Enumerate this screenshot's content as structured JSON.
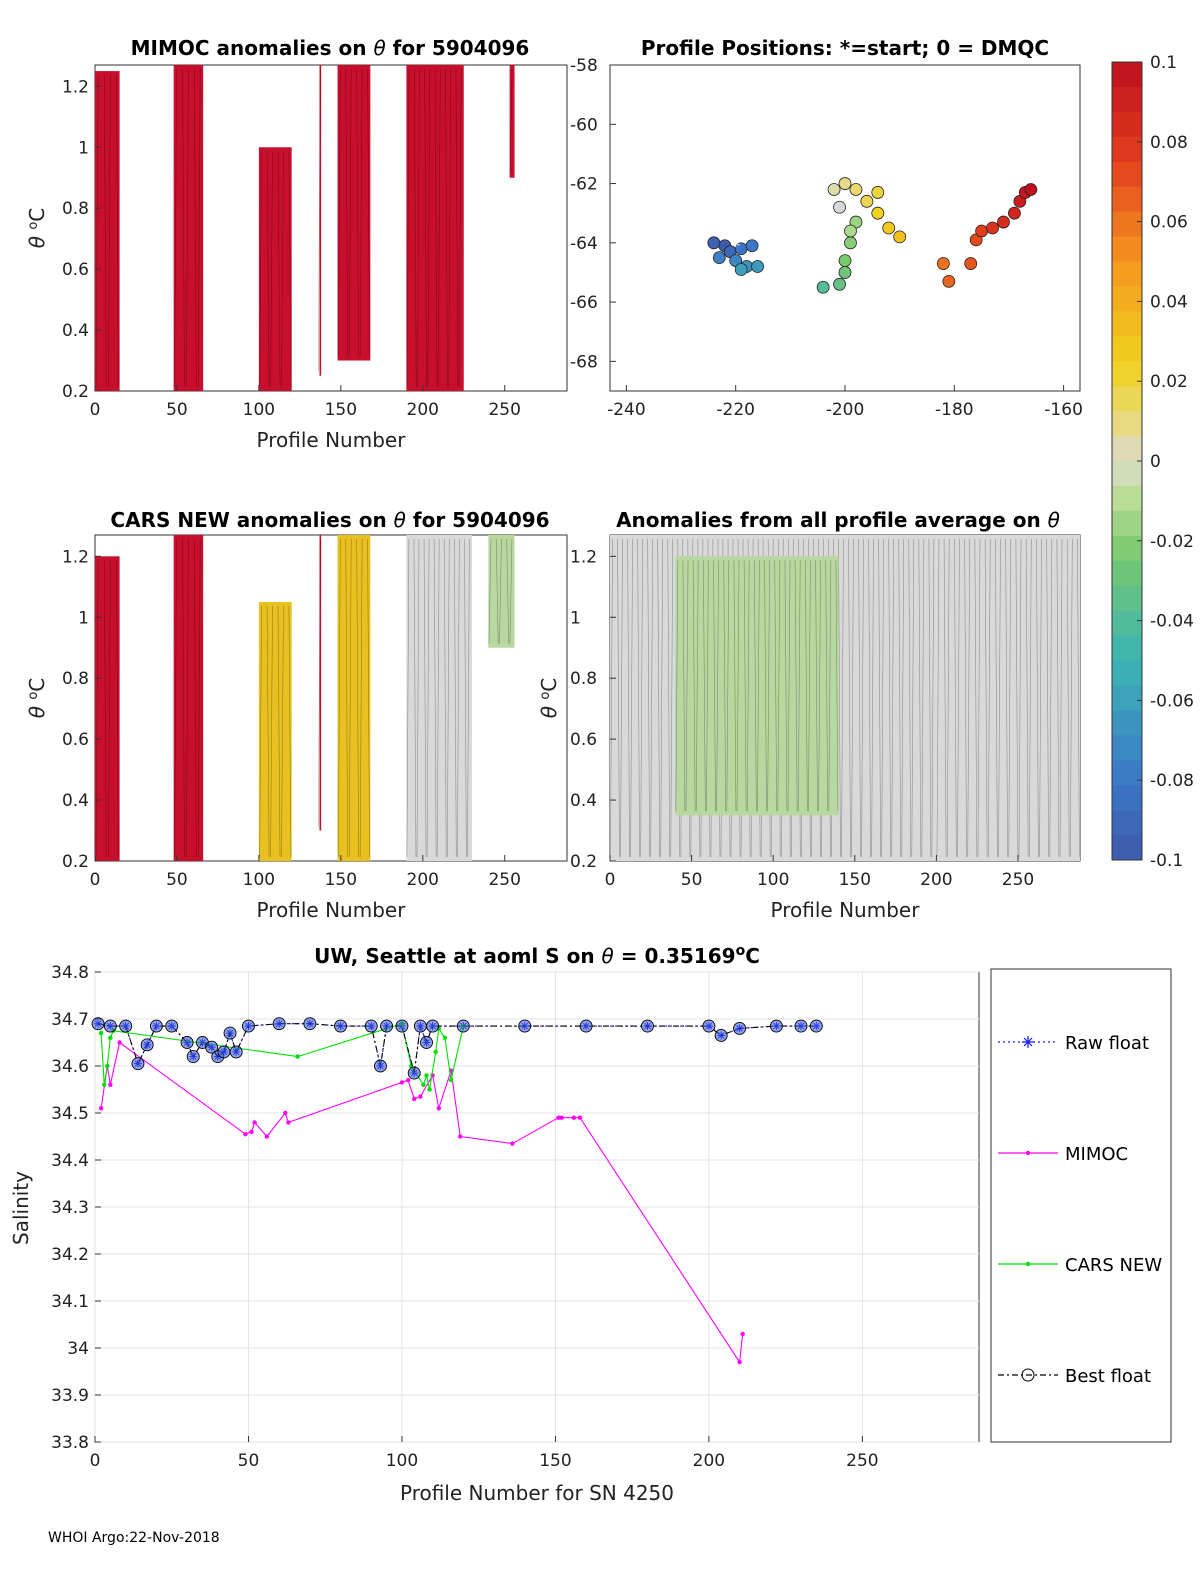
{
  "footer": "WHOI Argo:22-Nov-2018",
  "colors": {
    "raw": "#1a1aff",
    "mimoc": "#ff00ff",
    "cars": "#00e000",
    "best": "#000000",
    "anom_hot": "#c8102e",
    "anom_warm": "#e8c020",
    "anom_zero": "#d9d9d9",
    "anom_cool": "#b8d8a0"
  },
  "chart_data": [
    {
      "id": "p1",
      "type": "heatmap",
      "title_a": "MIMOC anomalies on ",
      "title_sym": "θ",
      "title_b": "  for 5904096",
      "xlabel": "Profile Number",
      "ylabel_sym": "θ",
      "ylabel_unit": "C",
      "xlim": [
        0,
        288
      ],
      "ylim": [
        0.2,
        1.27
      ],
      "xticks": [
        "0",
        "50",
        "100",
        "150",
        "200",
        "250"
      ],
      "xtick_vals": [
        0,
        50,
        100,
        150,
        200,
        250
      ],
      "yticks": [
        "0.2",
        "0.4",
        "0.6",
        "0.8",
        "1",
        "1.2"
      ],
      "ytick_vals": [
        0.2,
        0.4,
        0.6,
        0.8,
        1.0,
        1.2
      ],
      "bands": [
        {
          "x0": 0,
          "x1": 15,
          "y0": 0.2,
          "y1": 1.25,
          "level": "hot"
        },
        {
          "x0": 48,
          "x1": 66,
          "y0": 0.2,
          "y1": 1.27,
          "level": "hot"
        },
        {
          "x0": 100,
          "x1": 120,
          "y0": 0.2,
          "y1": 1.0,
          "level": "hot"
        },
        {
          "x0": 137,
          "x1": 138,
          "y0": 0.25,
          "y1": 1.27,
          "level": "hot"
        },
        {
          "x0": 148,
          "x1": 168,
          "y0": 0.3,
          "y1": 1.27,
          "level": "hot"
        },
        {
          "x0": 190,
          "x1": 225,
          "y0": 0.2,
          "y1": 1.27,
          "level": "hot"
        },
        {
          "x0": 253,
          "x1": 256,
          "y0": 0.9,
          "y1": 1.27,
          "level": "hot"
        }
      ]
    },
    {
      "id": "p2",
      "type": "scatter",
      "title": "Profile Positions: *=start; 0 = DMQC",
      "xlim": [
        -243,
        -157
      ],
      "ylim": [
        -69,
        -58
      ],
      "xticks": [
        "-240",
        "-220",
        "-200",
        "-180",
        "-160"
      ],
      "xtick_vals": [
        -240,
        -220,
        -200,
        -180,
        -160
      ],
      "yticks": [
        "-58",
        "-60",
        "-62",
        "-64",
        "-66",
        "-68"
      ],
      "ytick_vals": [
        -58,
        -60,
        -62,
        -64,
        -66,
        -68
      ],
      "points": [
        {
          "x": -222,
          "y": -64.1,
          "c": 0.0
        },
        {
          "x": -224,
          "y": -64.0,
          "c": 0.02
        },
        {
          "x": -221,
          "y": -64.3,
          "c": 0.05
        },
        {
          "x": -219,
          "y": -64.2,
          "c": 0.08
        },
        {
          "x": -217,
          "y": -64.1,
          "c": 0.1
        },
        {
          "x": -223,
          "y": -64.5,
          "c": 0.12
        },
        {
          "x": -220,
          "y": -64.6,
          "c": 0.14
        },
        {
          "x": -218,
          "y": -64.8,
          "c": 0.16
        },
        {
          "x": -216,
          "y": -64.8,
          "c": 0.18
        },
        {
          "x": -219,
          "y": -64.9,
          "c": 0.2
        },
        {
          "x": -204,
          "y": -65.5,
          "c": 0.3
        },
        {
          "x": -201,
          "y": -65.4,
          "c": 0.34
        },
        {
          "x": -200,
          "y": -65.0,
          "c": 0.36
        },
        {
          "x": -200,
          "y": -64.6,
          "c": 0.38
        },
        {
          "x": -199,
          "y": -64.0,
          "c": 0.4
        },
        {
          "x": -198,
          "y": -63.3,
          "c": 0.42
        },
        {
          "x": -199,
          "y": -63.6,
          "c": 0.44
        },
        {
          "x": -201,
          "y": -62.8,
          "c": 0.5
        },
        {
          "x": -202,
          "y": -62.2,
          "c": 0.52
        },
        {
          "x": -200,
          "y": -62.0,
          "c": 0.54
        },
        {
          "x": -198,
          "y": -62.2,
          "c": 0.56
        },
        {
          "x": -196,
          "y": -62.6,
          "c": 0.58
        },
        {
          "x": -194,
          "y": -62.3,
          "c": 0.6
        },
        {
          "x": -194,
          "y": -63.0,
          "c": 0.62
        },
        {
          "x": -192,
          "y": -63.5,
          "c": 0.64
        },
        {
          "x": -190,
          "y": -63.8,
          "c": 0.66
        },
        {
          "x": -182,
          "y": -64.7,
          "c": 0.8
        },
        {
          "x": -181,
          "y": -65.3,
          "c": 0.82
        },
        {
          "x": -177,
          "y": -64.7,
          "c": 0.84
        },
        {
          "x": -176,
          "y": -63.9,
          "c": 0.86
        },
        {
          "x": -175,
          "y": -63.6,
          "c": 0.88
        },
        {
          "x": -173,
          "y": -63.5,
          "c": 0.9
        },
        {
          "x": -171,
          "y": -63.3,
          "c": 0.92
        },
        {
          "x": -169,
          "y": -63.0,
          "c": 0.94
        },
        {
          "x": -168,
          "y": -62.6,
          "c": 0.96
        },
        {
          "x": -167,
          "y": -62.3,
          "c": 0.98
        },
        {
          "x": -166,
          "y": -62.2,
          "c": 1.0
        }
      ],
      "start": {
        "x": -220,
        "y": -64.1
      }
    },
    {
      "id": "cb",
      "type": "colorbar",
      "ticks": [
        "0.1",
        "0.08",
        "0.06",
        "0.04",
        "0.02",
        "0",
        "-0.02",
        "-0.04",
        "-0.06",
        "-0.08",
        "-0.1"
      ],
      "tick_vals": [
        0.1,
        0.08,
        0.06,
        0.04,
        0.02,
        0,
        -0.02,
        -0.04,
        -0.06,
        -0.08,
        -0.1
      ],
      "lim": [
        -0.1,
        0.1
      ]
    },
    {
      "id": "p3",
      "type": "heatmap",
      "title_a": "CARS NEW anomalies on ",
      "title_sym": "θ",
      "title_b": " for 5904096",
      "xlabel": "Profile Number",
      "ylabel_sym": "θ",
      "ylabel_unit": "C",
      "xlim": [
        0,
        288
      ],
      "ylim": [
        0.2,
        1.27
      ],
      "xticks": [
        "0",
        "50",
        "100",
        "150",
        "200",
        "250"
      ],
      "xtick_vals": [
        0,
        50,
        100,
        150,
        200,
        250
      ],
      "yticks": [
        "0.2",
        "0.4",
        "0.6",
        "0.8",
        "1",
        "1.2"
      ],
      "ytick_vals": [
        0.2,
        0.4,
        0.6,
        0.8,
        1.0,
        1.2
      ],
      "bands": [
        {
          "x0": 0,
          "x1": 15,
          "y0": 0.2,
          "y1": 1.2,
          "level": "hot"
        },
        {
          "x0": 48,
          "x1": 66,
          "y0": 0.2,
          "y1": 1.27,
          "level": "hot"
        },
        {
          "x0": 100,
          "x1": 120,
          "y0": 0.2,
          "y1": 1.05,
          "level": "warm"
        },
        {
          "x0": 137,
          "x1": 138,
          "y0": 0.3,
          "y1": 1.27,
          "level": "hot"
        },
        {
          "x0": 148,
          "x1": 168,
          "y0": 0.2,
          "y1": 1.27,
          "level": "warm"
        },
        {
          "x0": 190,
          "x1": 230,
          "y0": 0.2,
          "y1": 1.27,
          "level": "zero"
        },
        {
          "x0": 240,
          "x1": 256,
          "y0": 0.9,
          "y1": 1.27,
          "level": "cool"
        }
      ]
    },
    {
      "id": "p4",
      "type": "heatmap",
      "title_a": "Anomalies from all profile average on ",
      "title_sym": "θ",
      "title_b": "",
      "xlabel": "Profile Number",
      "ylabel_sym": "θ",
      "ylabel_unit": "C",
      "xlim": [
        0,
        288
      ],
      "ylim": [
        0.2,
        1.27
      ],
      "xticks": [
        "0",
        "50",
        "100",
        "150",
        "200",
        "250"
      ],
      "xtick_vals": [
        0,
        50,
        100,
        150,
        200,
        250
      ],
      "yticks": [
        "0.2",
        "0.4",
        "0.6",
        "0.8",
        "1",
        "1.2"
      ],
      "ytick_vals": [
        0.2,
        0.4,
        0.6,
        0.8,
        1.0,
        1.2
      ],
      "bands": [
        {
          "x0": 0,
          "x1": 200,
          "y0": 0.2,
          "y1": 1.27,
          "level": "zero"
        },
        {
          "x0": 200,
          "x1": 288,
          "y0": 0.2,
          "y1": 1.27,
          "level": "zero"
        },
        {
          "x0": 40,
          "x1": 140,
          "y0": 0.35,
          "y1": 1.2,
          "level": "cool"
        }
      ]
    },
    {
      "id": "p5",
      "type": "line",
      "title_a": "UW, Seattle at aoml S on ",
      "title_sym": "θ",
      "title_b": " = 0.35169",
      "title_unit": "C",
      "xlabel": "Profile Number for SN 4250",
      "ylabel": "Salinity",
      "xlim": [
        0,
        288
      ],
      "ylim": [
        33.8,
        34.8
      ],
      "xticks": [
        "0",
        "50",
        "100",
        "150",
        "200",
        "250"
      ],
      "xtick_vals": [
        0,
        50,
        100,
        150,
        200,
        250
      ],
      "yticks": [
        "33.8",
        "33.9",
        "34",
        "34.1",
        "34.2",
        "34.3",
        "34.4",
        "34.5",
        "34.6",
        "34.7",
        "34.8"
      ],
      "ytick_vals": [
        33.8,
        33.9,
        34.0,
        34.1,
        34.2,
        34.3,
        34.4,
        34.5,
        34.6,
        34.7,
        34.8
      ],
      "series": [
        {
          "name": "Raw float",
          "values": [
            [
              1,
              34.69
            ],
            [
              5,
              34.685
            ],
            [
              10,
              34.685
            ],
            [
              14,
              34.605
            ],
            [
              17,
              34.645
            ],
            [
              20,
              34.685
            ],
            [
              25,
              34.685
            ],
            [
              30,
              34.65
            ],
            [
              32,
              34.62
            ],
            [
              35,
              34.65
            ],
            [
              38,
              34.64
            ],
            [
              40,
              34.62
            ],
            [
              42,
              34.63
            ],
            [
              44,
              34.67
            ],
            [
              46,
              34.63
            ],
            [
              50,
              34.685
            ],
            [
              60,
              34.69
            ],
            [
              70,
              34.69
            ],
            [
              80,
              34.685
            ],
            [
              90,
              34.685
            ],
            [
              93,
              34.6
            ],
            [
              95,
              34.685
            ],
            [
              100,
              34.685
            ],
            [
              104,
              34.585
            ],
            [
              106,
              34.685
            ],
            [
              108,
              34.65
            ],
            [
              110,
              34.685
            ],
            [
              120,
              34.685
            ],
            [
              140,
              34.685
            ],
            [
              160,
              34.685
            ],
            [
              180,
              34.685
            ],
            [
              200,
              34.685
            ],
            [
              204,
              34.665
            ],
            [
              210,
              34.68
            ],
            [
              222,
              34.685
            ],
            [
              230,
              34.685
            ],
            [
              235,
              34.685
            ]
          ]
        },
        {
          "name": "MIMOC",
          "values": [
            [
              2,
              34.51
            ],
            [
              4,
              34.6
            ],
            [
              5,
              34.56
            ],
            [
              8,
              34.65
            ],
            [
              49,
              34.455
            ],
            [
              51,
              34.46
            ],
            [
              52,
              34.48
            ],
            [
              56,
              34.45
            ],
            [
              62,
              34.5
            ],
            [
              63,
              34.48
            ],
            [
              100,
              34.565
            ],
            [
              102,
              34.57
            ],
            [
              104,
              34.53
            ],
            [
              106,
              34.535
            ],
            [
              110,
              34.58
            ],
            [
              112,
              34.51
            ],
            [
              116,
              34.59
            ],
            [
              119,
              34.45
            ],
            [
              136,
              34.435
            ],
            [
              151,
              34.49
            ],
            [
              152,
              34.49
            ],
            [
              156,
              34.49
            ],
            [
              158,
              34.49
            ],
            [
              210,
              33.97
            ],
            [
              211,
              34.03
            ]
          ]
        },
        {
          "name": "CARS NEW",
          "values": [
            [
              2,
              34.67
            ],
            [
              3,
              34.56
            ],
            [
              4,
              34.6
            ],
            [
              5,
              34.66
            ],
            [
              6,
              34.675
            ],
            [
              66,
              34.62
            ],
            [
              100,
              34.69
            ],
            [
              103,
              34.6
            ],
            [
              107,
              34.56
            ],
            [
              108,
              34.58
            ],
            [
              109,
              34.55
            ],
            [
              111,
              34.63
            ],
            [
              112,
              34.68
            ],
            [
              114,
              34.66
            ],
            [
              116,
              34.57
            ],
            [
              120,
              34.685
            ]
          ]
        },
        {
          "name": "Best float",
          "values": [
            [
              1,
              34.69
            ],
            [
              5,
              34.685
            ],
            [
              10,
              34.685
            ],
            [
              14,
              34.605
            ],
            [
              17,
              34.645
            ],
            [
              20,
              34.685
            ],
            [
              25,
              34.685
            ],
            [
              30,
              34.65
            ],
            [
              32,
              34.62
            ],
            [
              35,
              34.65
            ],
            [
              38,
              34.64
            ],
            [
              40,
              34.62
            ],
            [
              42,
              34.63
            ],
            [
              44,
              34.67
            ],
            [
              46,
              34.63
            ],
            [
              50,
              34.685
            ],
            [
              60,
              34.69
            ],
            [
              70,
              34.69
            ],
            [
              80,
              34.685
            ],
            [
              90,
              34.685
            ],
            [
              93,
              34.6
            ],
            [
              95,
              34.685
            ],
            [
              100,
              34.685
            ],
            [
              104,
              34.585
            ],
            [
              106,
              34.685
            ],
            [
              108,
              34.65
            ],
            [
              110,
              34.685
            ],
            [
              120,
              34.685
            ],
            [
              140,
              34.685
            ],
            [
              160,
              34.685
            ],
            [
              180,
              34.685
            ],
            [
              200,
              34.685
            ],
            [
              204,
              34.665
            ],
            [
              210,
              34.68
            ],
            [
              222,
              34.685
            ],
            [
              230,
              34.685
            ],
            [
              235,
              34.685
            ]
          ]
        }
      ],
      "legend": [
        "Raw float",
        "MIMOC",
        "CARS NEW",
        "Best float"
      ]
    }
  ]
}
